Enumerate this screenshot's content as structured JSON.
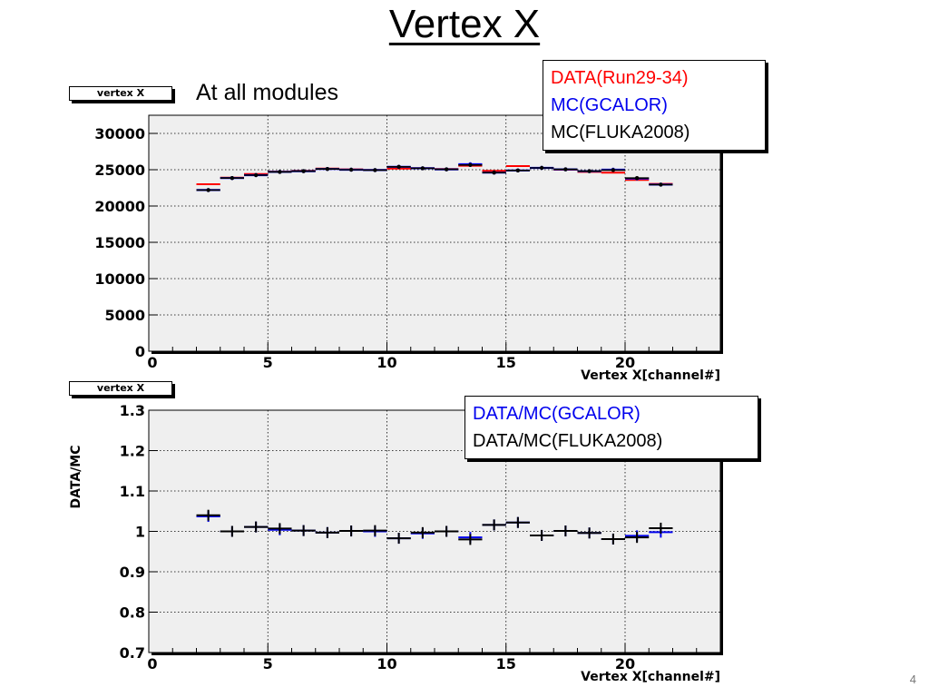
{
  "slide": {
    "title": "Vertex X",
    "subtitle": "At all modules",
    "page_number": "4"
  },
  "top_panel": {
    "stat_tag": "vertex X",
    "legend": [
      "DATA(Run29-34)",
      "MC(GCALOR)",
      "MC(FLUKA2008)"
    ]
  },
  "bottom_panel": {
    "stat_tag": "vertex X",
    "legend": [
      "DATA/MC(GCALOR)",
      "DATA/MC(FLUKA2008)"
    ]
  },
  "colors": {
    "data": "#ff0000",
    "gcalor": "#0000ee",
    "fluka": "#000000",
    "plot_bg": "#efefef"
  },
  "chart_data": [
    {
      "type": "scatter",
      "title": "",
      "xlabel": "Vertex X[channel#]",
      "ylabel": "",
      "xlim": [
        0,
        24
      ],
      "ylim": [
        0,
        32500
      ],
      "x_ticks": [
        "0",
        "5",
        "10",
        "15",
        "20"
      ],
      "y_ticks": [
        "0",
        "5000",
        "10000",
        "15000",
        "20000",
        "25000",
        "30000"
      ],
      "grid": true,
      "legend_position": "top-right",
      "x": [
        2.5,
        3.5,
        4.5,
        5.5,
        6.5,
        7.5,
        8.5,
        9.5,
        10.5,
        11.5,
        12.5,
        13.5,
        14.5,
        15.5,
        16.5,
        17.5,
        18.5,
        19.5,
        20.5,
        21.5
      ],
      "series": [
        {
          "name": "DATA(Run29-34)",
          "color": "#ff0000",
          "values": [
            23000,
            23900,
            24400,
            24750,
            24850,
            25150,
            25050,
            24950,
            25150,
            25200,
            25100,
            25550,
            24850,
            25500,
            25250,
            25000,
            24700,
            24600,
            23600,
            23050
          ]
        },
        {
          "name": "MC(GCALOR)",
          "color": "#0000ee",
          "values": [
            22200,
            23850,
            24250,
            24700,
            24800,
            25100,
            25000,
            24950,
            25400,
            25200,
            25050,
            25750,
            24600,
            24900,
            25250,
            25050,
            24800,
            25000,
            23800,
            22950
          ]
        },
        {
          "name": "MC(FLUKA2008)",
          "color": "#000000",
          "values": [
            22200,
            23850,
            24250,
            24700,
            24800,
            25100,
            25000,
            24950,
            25400,
            25200,
            25050,
            25650,
            24600,
            24900,
            25250,
            25050,
            24800,
            24950,
            23850,
            22950
          ]
        }
      ]
    },
    {
      "type": "scatter",
      "title": "",
      "xlabel": "Vertex X[channel#]",
      "ylabel": "DATA/MC",
      "xlim": [
        0,
        24
      ],
      "ylim": [
        0.7,
        1.3
      ],
      "x_ticks": [
        "0",
        "5",
        "10",
        "15",
        "20"
      ],
      "y_ticks": [
        "0.7",
        "0.8",
        "0.9",
        "1",
        "1.1",
        "1.2",
        "1.3"
      ],
      "grid": true,
      "legend_position": "top-right",
      "x": [
        2.5,
        3.5,
        4.5,
        5.5,
        6.5,
        7.5,
        8.5,
        9.5,
        10.5,
        11.5,
        12.5,
        13.5,
        14.5,
        15.5,
        16.5,
        17.5,
        18.5,
        19.5,
        20.5,
        21.5
      ],
      "series": [
        {
          "name": "DATA/MC(GCALOR)",
          "color": "#0000ee",
          "values": [
            1.037,
            1.0,
            1.011,
            1.004,
            1.002,
            0.997,
            1.001,
            1.0,
            0.983,
            0.995,
            1.0,
            0.985,
            1.016,
            1.022,
            0.99,
            1.001,
            0.996,
            0.981,
            0.989,
            0.998
          ]
        },
        {
          "name": "DATA/MC(FLUKA2008)",
          "color": "#000000",
          "values": [
            1.04,
            1.0,
            1.011,
            1.007,
            1.002,
            0.997,
            1.001,
            1.002,
            0.983,
            0.997,
            1.0,
            0.98,
            1.016,
            1.022,
            0.99,
            1.001,
            0.996,
            0.981,
            0.985,
            1.008
          ]
        }
      ]
    }
  ]
}
